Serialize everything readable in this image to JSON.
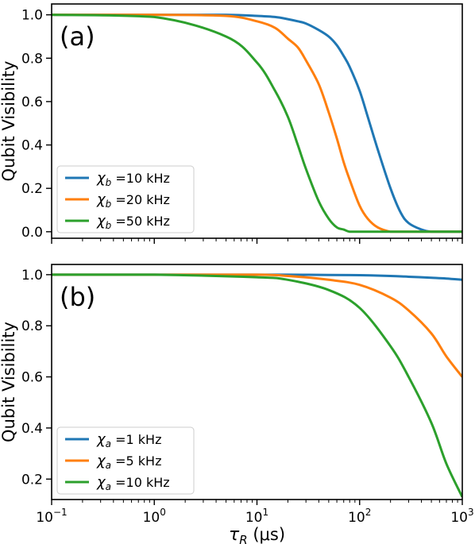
{
  "chart_data": [
    {
      "type": "line",
      "panel_label": "(a)",
      "ylabel": "Qubit Visibility",
      "xlabel": "",
      "xscale": "log",
      "xlim": [
        0.1,
        1000
      ],
      "ylim": [
        -0.03,
        1.05
      ],
      "yticks": [
        "0.0",
        "0.2",
        "0.4",
        "0.6",
        "0.8",
        "1.0"
      ],
      "ytick_values": [
        0.0,
        0.2,
        0.4,
        0.6,
        0.8,
        1.0
      ],
      "legend_position": "lower-left",
      "x": [
        0.1,
        1,
        5,
        10,
        15,
        20,
        25,
        30,
        40,
        50,
        60,
        70,
        80,
        100,
        120,
        150,
        200,
        250,
        300,
        400,
        500,
        700,
        1000
      ],
      "series": [
        {
          "name": "χb =10 kHz",
          "symbol": "χ",
          "subscript": "b",
          "suffix": " =10 kHz",
          "color": "#1f77b4",
          "values": [
            1.0,
            1.0,
            1.0,
            0.995,
            0.99,
            0.98,
            0.97,
            0.96,
            0.93,
            0.9,
            0.86,
            0.81,
            0.76,
            0.65,
            0.53,
            0.38,
            0.2,
            0.09,
            0.04,
            0.01,
            0.0,
            0.0,
            0.0
          ]
        },
        {
          "name": "χb =20 kHz",
          "symbol": "χ",
          "subscript": "b",
          "suffix": " =20 kHz",
          "color": "#ff7f0e",
          "values": [
            1.0,
            1.0,
            0.995,
            0.97,
            0.94,
            0.89,
            0.85,
            0.79,
            0.68,
            0.55,
            0.43,
            0.32,
            0.24,
            0.12,
            0.06,
            0.02,
            0.0,
            0.0,
            0.0,
            0.0,
            0.0,
            0.0,
            0.0
          ]
        },
        {
          "name": "χb =50 kHz",
          "symbol": "χ",
          "subscript": "b",
          "suffix": " =50 kHz",
          "color": "#2ca02c",
          "values": [
            1.0,
            0.99,
            0.9,
            0.78,
            0.65,
            0.53,
            0.4,
            0.29,
            0.14,
            0.06,
            0.02,
            0.01,
            0.0,
            0.0,
            0.0,
            0.0,
            0.0,
            0.0,
            0.0,
            0.0,
            0.0,
            0.0,
            0.0
          ]
        }
      ]
    },
    {
      "type": "line",
      "panel_label": "(b)",
      "ylabel": "Qubit Visibility",
      "xlabel": "τR (μs)",
      "xlabel_parts": {
        "symbol": "τ",
        "subscript": "R",
        "unit": " (μs)"
      },
      "xscale": "log",
      "xlim": [
        0.1,
        1000
      ],
      "xticks": [
        0.1,
        1,
        10,
        100,
        1000
      ],
      "xtick_labels": [
        {
          "base": "10",
          "exp": "−1"
        },
        {
          "base": "10",
          "exp": "0"
        },
        {
          "base": "10",
          "exp": "1"
        },
        {
          "base": "10",
          "exp": "2"
        },
        {
          "base": "10",
          "exp": "3"
        }
      ],
      "ylim": [
        0.12,
        1.04
      ],
      "yticks": [
        "0.2",
        "0.4",
        "0.6",
        "0.8",
        "1.0"
      ],
      "ytick_values": [
        0.2,
        0.4,
        0.6,
        0.8,
        1.0
      ],
      "legend_position": "lower-left",
      "x": [
        0.1,
        1,
        10,
        20,
        50,
        100,
        200,
        300,
        500,
        700,
        1000
      ],
      "series": [
        {
          "name": "χa =1 kHz",
          "symbol": "χ",
          "subscript": "a",
          "suffix": " =1 kHz",
          "color": "#1f77b4",
          "values": [
            1.0,
            1.0,
            1.0,
            1.0,
            0.999,
            0.998,
            0.995,
            0.992,
            0.988,
            0.985,
            0.98
          ]
        },
        {
          "name": "χa =5 kHz",
          "symbol": "χ",
          "subscript": "a",
          "suffix": " =5 kHz",
          "color": "#ff7f0e",
          "values": [
            1.0,
            1.0,
            1.0,
            0.995,
            0.98,
            0.96,
            0.91,
            0.86,
            0.77,
            0.68,
            0.6
          ]
        },
        {
          "name": "χa =10 kHz",
          "symbol": "χ",
          "subscript": "a",
          "suffix": " =10 kHz",
          "color": "#2ca02c",
          "values": [
            1.0,
            1.0,
            0.99,
            0.98,
            0.94,
            0.87,
            0.72,
            0.6,
            0.42,
            0.26,
            0.13
          ]
        }
      ]
    }
  ]
}
